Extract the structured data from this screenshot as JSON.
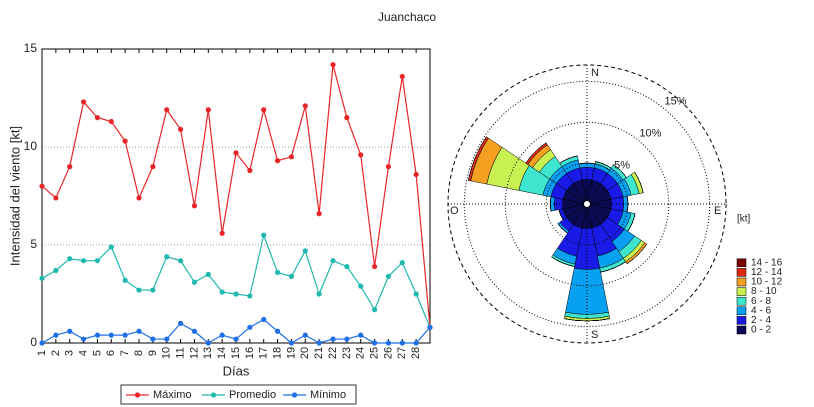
{
  "chart_data": [
    {
      "type": "line",
      "title": "Juanchaco",
      "xlabel": "Días",
      "ylabel": "Intensidad del viento [kt]",
      "x": [
        1,
        2,
        3,
        4,
        5,
        6,
        7,
        8,
        9,
        10,
        11,
        12,
        13,
        14,
        15,
        16,
        17,
        18,
        19,
        20,
        21,
        22,
        23,
        24,
        25,
        26,
        27,
        28,
        29
      ],
      "xlim": [
        1,
        29
      ],
      "xticks": [
        1,
        2,
        3,
        4,
        5,
        6,
        7,
        8,
        9,
        10,
        11,
        12,
        13,
        14,
        15,
        16,
        17,
        18,
        19,
        20,
        21,
        22,
        23,
        24,
        25,
        26,
        27,
        28
      ],
      "ylim": [
        0,
        15
      ],
      "yticks": [
        0,
        5,
        10,
        15
      ],
      "grid": true,
      "legend": "bottom",
      "series": [
        {
          "name": "Máximo",
          "color": "#e8262a",
          "values": [
            8,
            7.4,
            9,
            12.3,
            11.5,
            11.3,
            10.3,
            7.4,
            9,
            11.9,
            10.9,
            7,
            11.9,
            5.6,
            9.7,
            8.8,
            11.9,
            9.3,
            9.5,
            12.1,
            6.6,
            14.2,
            11.5,
            9.6,
            3.9,
            9,
            13.6,
            8.6,
            0.8
          ]
        },
        {
          "name": "Promedio",
          "color": "#1fb8b0",
          "values": [
            3.3,
            3.7,
            4.3,
            4.2,
            4.2,
            4.9,
            3.2,
            2.7,
            2.7,
            4.4,
            4.2,
            3.1,
            3.5,
            2.6,
            2.5,
            2.4,
            5.5,
            3.6,
            3.4,
            4.7,
            2.5,
            4.2,
            3.9,
            2.9,
            1.7,
            3.4,
            4.1,
            2.5,
            0.8
          ]
        },
        {
          "name": "Mínimo",
          "color": "#1f6fe8",
          "values": [
            0,
            0.4,
            0.6,
            0.2,
            0.4,
            0.4,
            0.4,
            0.6,
            0.2,
            0.2,
            1,
            0.6,
            0,
            0.4,
            0.2,
            0.8,
            1.2,
            0.6,
            0,
            0.4,
            0,
            0.2,
            0.2,
            0.4,
            0,
            0,
            0,
            0,
            0.8
          ]
        }
      ]
    },
    {
      "type": "windrose",
      "legend_title": "[kt]",
      "direction_labels": {
        "N": "N",
        "E": "E",
        "S": "S",
        "W": "O"
      },
      "rlim": [
        0,
        17
      ],
      "rticks": [
        {
          "value": 5,
          "label": "5%"
        },
        {
          "value": 10,
          "label": "10%"
        },
        {
          "value": 15,
          "label": "15%"
        }
      ],
      "series": [
        {
          "name": "0 - 2",
          "color": "#0a0a55",
          "values": [
            3,
            3,
            3,
            3,
            3,
            3,
            3,
            3,
            3,
            3,
            3,
            3,
            3,
            3,
            3,
            3
          ]
        },
        {
          "name": "2 - 4",
          "color": "#1a1ae6",
          "values": [
            1.5,
            1.5,
            1.5,
            1.5,
            1.5,
            1.5,
            2.5,
            3.5,
            5,
            3.5,
            1,
            0.5,
            1,
            1.5,
            1.5,
            1.5
          ]
        },
        {
          "name": "4 - 6",
          "color": "#08a0f0",
          "values": [
            0.5,
            0.5,
            0.8,
            1,
            0.5,
            1,
            1.5,
            1.5,
            5.5,
            1,
            0.3,
            0,
            0.5,
            1,
            1,
            1
          ]
        },
        {
          "name": "6 - 8",
          "color": "#3ee6d0",
          "values": [
            0,
            0.3,
            0.5,
            1,
            0,
            0.5,
            1,
            0.5,
            0.5,
            0.3,
            0,
            0,
            0,
            3,
            1.5,
            0.5
          ]
        },
        {
          "name": "8 - 10",
          "color": "#c8f050",
          "values": [
            0,
            0,
            0,
            0.5,
            0,
            0,
            0.5,
            0,
            0.3,
            0,
            0,
            0,
            0,
            4,
            1,
            0
          ]
        },
        {
          "name": "10 - 12",
          "color": "#f5a020",
          "values": [
            0,
            0,
            0,
            0,
            0,
            0,
            0.3,
            0,
            0,
            0,
            0,
            0,
            0,
            2,
            0.7,
            0
          ]
        },
        {
          "name": "12 - 14",
          "color": "#e02a10",
          "values": [
            0,
            0,
            0,
            0,
            0,
            0,
            0,
            0,
            0,
            0,
            0,
            0,
            0,
            0.3,
            0.3,
            0
          ]
        },
        {
          "name": "14 - 16",
          "color": "#7a0000",
          "values": [
            0,
            0,
            0,
            0,
            0,
            0,
            0,
            0,
            0,
            0,
            0,
            0,
            0,
            0,
            0,
            0
          ]
        }
      ]
    }
  ]
}
